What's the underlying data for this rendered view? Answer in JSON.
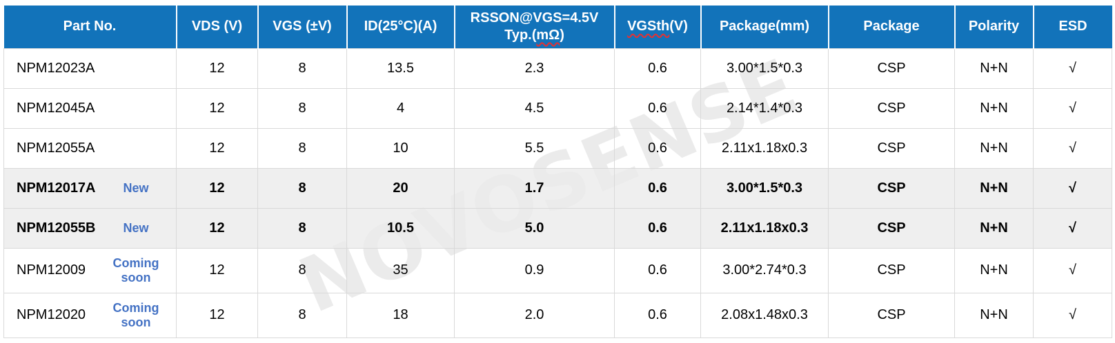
{
  "watermark": "NOVOSENSE",
  "colors": {
    "header_bg": "#1273ba",
    "badge_blue": "#4472c4",
    "highlight_row_bg": "#efefef",
    "grid_border": "#d9d9d9",
    "squiggle_red": "#e83030"
  },
  "table": {
    "columns": [
      {
        "lines": [
          "Part No."
        ]
      },
      {
        "lines": [
          "VDS (V)"
        ]
      },
      {
        "lines": [
          "VGS (±V)"
        ]
      },
      {
        "lines": [
          "ID(25°C)(A)"
        ]
      },
      {
        "lines": [
          "RSSON@VGS=4.5V",
          "Typ.(mΩ)"
        ],
        "squiggle": "mΩ"
      },
      {
        "lines": [
          "VGSth(V)"
        ],
        "squiggle": "VGSth"
      },
      {
        "lines": [
          "Package(mm)"
        ]
      },
      {
        "lines": [
          "Package"
        ]
      },
      {
        "lines": [
          "Polarity"
        ]
      },
      {
        "lines": [
          "ESD"
        ]
      }
    ],
    "rows": [
      {
        "part": "NPM12023A",
        "badge": "",
        "highlight": false,
        "tall": false,
        "values": [
          "12",
          "8",
          "13.5",
          "2.3",
          "0.6",
          "3.00*1.5*0.3",
          "CSP",
          "N+N",
          "√"
        ]
      },
      {
        "part": "NPM12045A",
        "badge": "",
        "highlight": false,
        "tall": false,
        "values": [
          "12",
          "8",
          "4",
          "4.5",
          "0.6",
          "2.14*1.4*0.3",
          "CSP",
          "N+N",
          "√"
        ]
      },
      {
        "part": "NPM12055A",
        "badge": "",
        "highlight": false,
        "tall": false,
        "values": [
          "12",
          "8",
          "10",
          "5.5",
          "0.6",
          "2.11x1.18x0.3",
          "CSP",
          "N+N",
          "√"
        ]
      },
      {
        "part": "NPM12017A",
        "badge": "New",
        "highlight": true,
        "tall": false,
        "values": [
          "12",
          "8",
          "20",
          "1.7",
          "0.6",
          "3.00*1.5*0.3",
          "CSP",
          "N+N",
          "√"
        ]
      },
      {
        "part": "NPM12055B",
        "badge": "New",
        "highlight": true,
        "tall": false,
        "values": [
          "12",
          "8",
          "10.5",
          "5.0",
          "0.6",
          "2.11x1.18x0.3",
          "CSP",
          "N+N",
          "√"
        ]
      },
      {
        "part": "NPM12009",
        "badge": "Coming soon",
        "highlight": false,
        "tall": true,
        "values": [
          "12",
          "8",
          "35",
          "0.9",
          "0.6",
          "3.00*2.74*0.3",
          "CSP",
          "N+N",
          "√"
        ]
      },
      {
        "part": "NPM12020",
        "badge": "Coming soon",
        "highlight": false,
        "tall": true,
        "values": [
          "12",
          "8",
          "18",
          "2.0",
          "0.6",
          "2.08x1.48x0.3",
          "CSP",
          "N+N",
          "√"
        ]
      }
    ]
  }
}
